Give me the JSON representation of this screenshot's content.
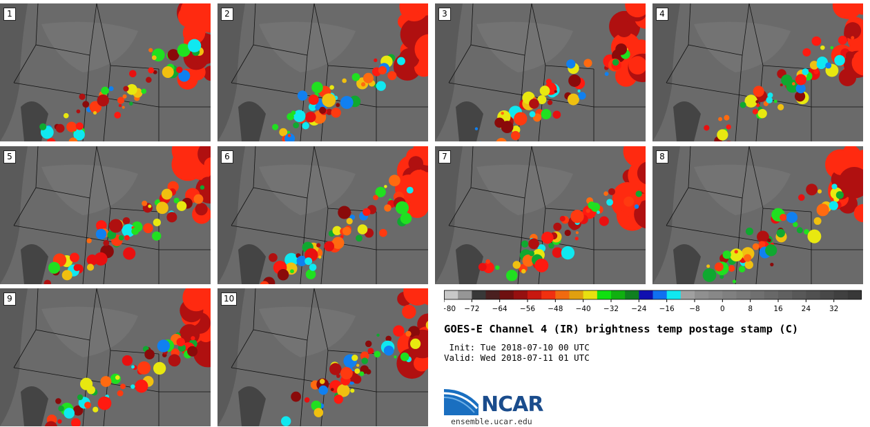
{
  "panels": [
    {
      "label": "1"
    },
    {
      "label": "2"
    },
    {
      "label": "3"
    },
    {
      "label": "4"
    },
    {
      "label": "5"
    },
    {
      "label": "6"
    },
    {
      "label": "7"
    },
    {
      "label": "8"
    },
    {
      "label": "9"
    },
    {
      "label": "10"
    }
  ],
  "colorbar": {
    "colors": [
      "#c8c8c8",
      "#969696",
      "#383838",
      "#4a2020",
      "#6e1010",
      "#961010",
      "#c81810",
      "#f03010",
      "#f06a10",
      "#e0a010",
      "#e8e010",
      "#10e010",
      "#10b010",
      "#108020",
      "#1010b0",
      "#1070f0",
      "#10e8f0",
      "#a0a0a0",
      "#909090",
      "#888888",
      "#808080",
      "#787878",
      "#707070",
      "#686868",
      "#606060",
      "#585858",
      "#505050",
      "#484848",
      "#404040",
      "#383838"
    ],
    "ticks": [
      "−80",
      "−72",
      "−64",
      "−56",
      "−48",
      "−40",
      "−32",
      "−24",
      "−16",
      "−8",
      "0",
      "8",
      "16",
      "24",
      "32"
    ]
  },
  "title": "GOES-E Channel 4 (IR) brightness temp postage stamp (C)",
  "init": " Init: Tue 2018-07-10 00 UTC",
  "valid": "Valid: Wed 2018-07-11 01 UTC",
  "logo_text": "NCAR",
  "url": "ensemble.ucar.edu",
  "map_colors": {
    "background": "#6a6a6a",
    "boundaries": "#111111"
  }
}
